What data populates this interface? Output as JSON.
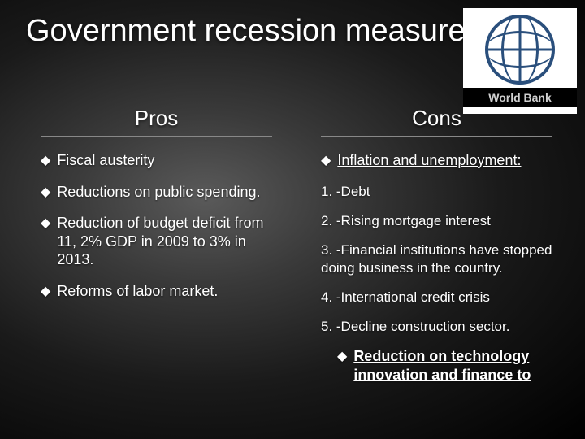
{
  "title": "Government recession measures",
  "logo": {
    "label": "World Bank"
  },
  "columns": {
    "left": {
      "header": "Pros",
      "items": [
        {
          "type": "bullet",
          "text": "Fiscal austerity"
        },
        {
          "type": "bullet",
          "text": "Reductions on public spending."
        },
        {
          "type": "bullet",
          "text": "Reduction of budget deficit from 11, 2% GDP in 2009 to 3% in 2013."
        },
        {
          "type": "bullet",
          "text": "Reforms of labor market."
        }
      ]
    },
    "right": {
      "header": "Cons",
      "items": [
        {
          "type": "bullet",
          "text": "Inflation and unemployment:",
          "underline": true
        },
        {
          "type": "plain",
          "text": "1. -Debt"
        },
        {
          "type": "plain",
          "text": "2. -Rising mortgage interest"
        },
        {
          "type": "plain",
          "text": "3. -Financial institutions have stopped doing business in the country."
        },
        {
          "type": "plain",
          "text": "4. -International credit crisis"
        },
        {
          "type": "plain",
          "text": "5. -Decline construction sector."
        },
        {
          "type": "bullet",
          "text": " Reduction on technology innovation and finance to",
          "underline": true,
          "bold": true,
          "indent": true
        }
      ]
    }
  },
  "style": {
    "bullet_marker": "◆",
    "text_color": "#ffffff",
    "logo_border_color": "#2a4f7c",
    "title_fontsize": 38,
    "header_fontsize": 26,
    "body_fontsize": 18
  }
}
